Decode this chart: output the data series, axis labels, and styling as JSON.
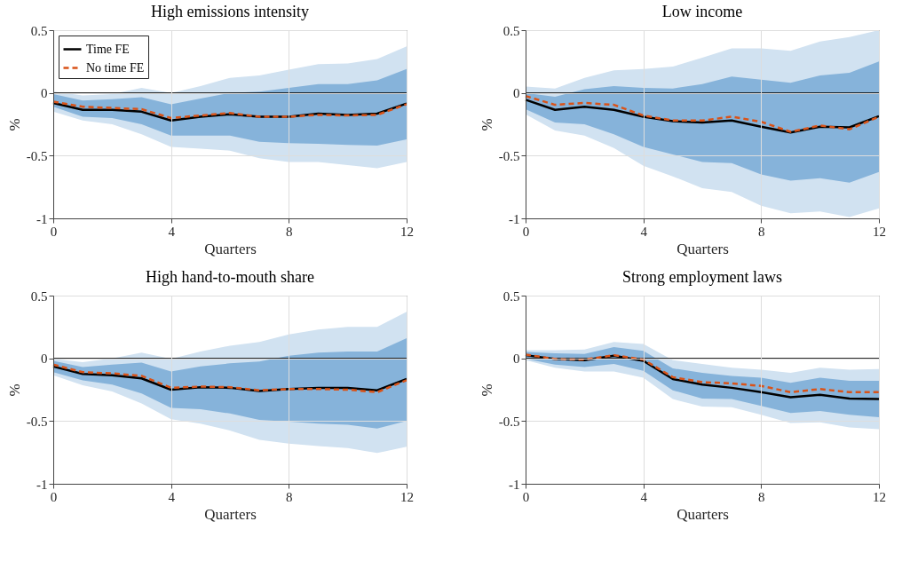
{
  "chart_data": [
    {
      "type": "line",
      "title": "High emissions intensity",
      "xlabel": "Quarters",
      "ylabel": "%",
      "x": [
        0,
        1,
        2,
        3,
        4,
        5,
        6,
        7,
        8,
        9,
        10,
        11,
        12
      ],
      "xlim": [
        0,
        12
      ],
      "xticks": [
        0,
        4,
        8,
        12
      ],
      "ylim": [
        -1,
        0.5
      ],
      "yticks": [
        -1,
        -0.5,
        0,
        0.5
      ],
      "grid": true,
      "legend": "top left",
      "ref_lines": [
        {
          "axis": "y",
          "value": 0,
          "color": "#000000"
        }
      ],
      "series": [
        {
          "type": "area",
          "color": "#d1e2f1",
          "values": [
            null,
            null,
            null,
            null,
            null,
            null,
            null,
            null,
            null,
            null,
            null,
            null,
            null
          ],
          "lower": [
            -0.15,
            -0.22,
            -0.25,
            -0.33,
            -0.43,
            -0.445,
            -0.46,
            -0.52,
            -0.55,
            -0.55,
            -0.575,
            -0.6,
            -0.55
          ],
          "upper": [
            0.01,
            -0.02,
            -0.01,
            0.04,
            0,
            0.055,
            0.12,
            0.14,
            0.185,
            0.23,
            0.235,
            0.27,
            0.37
          ]
        },
        {
          "type": "area",
          "color": "#86b3da",
          "values": [
            null,
            null,
            null,
            null,
            null,
            null,
            null,
            null,
            null,
            null,
            null,
            null,
            null
          ],
          "lower": [
            -0.11,
            -0.19,
            -0.2,
            -0.25,
            -0.34,
            -0.34,
            -0.34,
            -0.39,
            -0.4,
            -0.405,
            -0.415,
            -0.42,
            -0.37
          ],
          "upper": [
            -0.01,
            -0.06,
            -0.05,
            -0.035,
            -0.09,
            -0.045,
            0,
            0.01,
            0.04,
            0.07,
            0.07,
            0.1,
            0.19
          ]
        },
        {
          "name": "Time FE",
          "color": "#000000",
          "line_style": "solid",
          "values": [
            -0.08,
            -0.135,
            -0.135,
            -0.15,
            -0.22,
            -0.19,
            -0.17,
            -0.19,
            -0.19,
            -0.165,
            -0.175,
            -0.165,
            -0.085
          ]
        },
        {
          "name": "No time FE",
          "color": "#d95319",
          "line_style": "dashed",
          "values": [
            -0.07,
            -0.11,
            -0.12,
            -0.13,
            -0.2,
            -0.18,
            -0.16,
            -0.19,
            -0.19,
            -0.175,
            -0.18,
            -0.175,
            -0.09
          ]
        }
      ]
    },
    {
      "type": "line",
      "title": "Low income",
      "xlabel": "Quarters",
      "ylabel": "%",
      "x": [
        0,
        1,
        2,
        3,
        4,
        5,
        6,
        7,
        8,
        9,
        10,
        11,
        12
      ],
      "xlim": [
        0,
        12
      ],
      "xticks": [
        0,
        4,
        8,
        12
      ],
      "ylim": [
        -1,
        0.5
      ],
      "yticks": [
        -1,
        -0.5,
        0,
        0.5
      ],
      "grid": true,
      "ref_lines": [
        {
          "axis": "y",
          "value": 0,
          "color": "#000000"
        }
      ],
      "series": [
        {
          "type": "area",
          "color": "#d1e2f1",
          "values": [
            null,
            null,
            null,
            null,
            null,
            null,
            null,
            null,
            null,
            null,
            null,
            null,
            null
          ],
          "lower": [
            -0.17,
            -0.3,
            -0.34,
            -0.44,
            -0.58,
            -0.665,
            -0.76,
            -0.79,
            -0.9,
            -0.96,
            -0.945,
            -0.99,
            -0.92
          ],
          "upper": [
            0.05,
            0.035,
            0.12,
            0.18,
            0.19,
            0.21,
            0.28,
            0.355,
            0.355,
            0.335,
            0.41,
            0.445,
            0.5
          ]
        },
        {
          "type": "area",
          "color": "#86b3da",
          "values": [
            null,
            null,
            null,
            null,
            null,
            null,
            null,
            null,
            null,
            null,
            null,
            null,
            null
          ],
          "lower": [
            -0.13,
            -0.235,
            -0.25,
            -0.33,
            -0.43,
            -0.49,
            -0.55,
            -0.56,
            -0.65,
            -0.7,
            -0.68,
            -0.715,
            -0.63
          ],
          "upper": [
            0,
            -0.03,
            0.03,
            0.055,
            0.04,
            0.035,
            0.07,
            0.13,
            0.105,
            0.08,
            0.14,
            0.16,
            0.25
          ]
        },
        {
          "name": "Time FE",
          "color": "#000000",
          "line_style": "solid",
          "values": [
            -0.055,
            -0.135,
            -0.11,
            -0.135,
            -0.19,
            -0.225,
            -0.235,
            -0.22,
            -0.27,
            -0.315,
            -0.27,
            -0.275,
            -0.185
          ]
        },
        {
          "name": "No time FE",
          "color": "#d95319",
          "line_style": "dashed",
          "values": [
            -0.025,
            -0.095,
            -0.08,
            -0.095,
            -0.18,
            -0.22,
            -0.22,
            -0.19,
            -0.23,
            -0.31,
            -0.26,
            -0.29,
            -0.19
          ]
        }
      ]
    },
    {
      "type": "line",
      "title": "High hand-to-mouth share",
      "xlabel": "Quarters",
      "ylabel": "%",
      "x": [
        0,
        1,
        2,
        3,
        4,
        5,
        6,
        7,
        8,
        9,
        10,
        11,
        12
      ],
      "xlim": [
        0,
        12
      ],
      "xticks": [
        0,
        4,
        8,
        12
      ],
      "ylim": [
        -1,
        0.5
      ],
      "yticks": [
        -1,
        -0.5,
        0,
        0.5
      ],
      "grid": true,
      "ref_lines": [
        {
          "axis": "y",
          "value": 0,
          "color": "#000000"
        }
      ],
      "series": [
        {
          "type": "area",
          "color": "#d1e2f1",
          "values": [
            null,
            null,
            null,
            null,
            null,
            null,
            null,
            null,
            null,
            null,
            null,
            null,
            null
          ],
          "lower": [
            -0.135,
            -0.215,
            -0.265,
            -0.36,
            -0.485,
            -0.52,
            -0.575,
            -0.65,
            -0.68,
            -0.7,
            -0.715,
            -0.755,
            -0.705
          ],
          "upper": [
            -0.005,
            -0.03,
            0,
            0.045,
            -0.005,
            0.055,
            0.1,
            0.13,
            0.19,
            0.23,
            0.25,
            0.25,
            0.37
          ]
        },
        {
          "type": "area",
          "color": "#86b3da",
          "values": [
            null,
            null,
            null,
            null,
            null,
            null,
            null,
            null,
            null,
            null,
            null,
            null,
            null
          ],
          "lower": [
            -0.11,
            -0.175,
            -0.21,
            -0.28,
            -0.395,
            -0.405,
            -0.44,
            -0.49,
            -0.505,
            -0.52,
            -0.53,
            -0.56,
            -0.5
          ],
          "upper": [
            -0.02,
            -0.07,
            -0.05,
            -0.035,
            -0.105,
            -0.065,
            -0.04,
            -0.025,
            0.02,
            0.045,
            0.055,
            0.055,
            0.16
          ]
        },
        {
          "name": "Time FE",
          "color": "#000000",
          "line_style": "solid",
          "values": [
            -0.065,
            -0.125,
            -0.135,
            -0.16,
            -0.25,
            -0.23,
            -0.235,
            -0.26,
            -0.245,
            -0.235,
            -0.235,
            -0.255,
            -0.165
          ]
        },
        {
          "name": "No time FE",
          "color": "#d95319",
          "line_style": "dashed",
          "values": [
            -0.05,
            -0.11,
            -0.12,
            -0.14,
            -0.235,
            -0.225,
            -0.23,
            -0.255,
            -0.245,
            -0.245,
            -0.25,
            -0.27,
            -0.175
          ]
        }
      ]
    },
    {
      "type": "line",
      "title": "Strong employment laws",
      "xlabel": "Quarters",
      "ylabel": "%",
      "x": [
        0,
        1,
        2,
        3,
        4,
        5,
        6,
        7,
        8,
        9,
        10,
        11,
        12
      ],
      "xlim": [
        0,
        12
      ],
      "xticks": [
        0,
        4,
        8,
        12
      ],
      "ylim": [
        -1,
        0.5
      ],
      "yticks": [
        -1,
        -0.5,
        0,
        0.5
      ],
      "grid": true,
      "ref_lines": [
        {
          "axis": "y",
          "value": 0,
          "color": "#000000"
        }
      ],
      "series": [
        {
          "type": "area",
          "color": "#d1e2f1",
          "values": [
            null,
            null,
            null,
            null,
            null,
            null,
            null,
            null,
            null,
            null,
            null,
            null,
            null
          ],
          "lower": [
            -0.015,
            -0.075,
            -0.105,
            -0.105,
            -0.155,
            -0.325,
            -0.385,
            -0.39,
            -0.45,
            -0.515,
            -0.51,
            -0.55,
            -0.565
          ],
          "upper": [
            0.065,
            0.065,
            0.07,
            0.13,
            0.115,
            -0.015,
            -0.045,
            -0.075,
            -0.09,
            -0.115,
            -0.075,
            -0.09,
            -0.085
          ]
        },
        {
          "type": "area",
          "color": "#86b3da",
          "values": [
            null,
            null,
            null,
            null,
            null,
            null,
            null,
            null,
            null,
            null,
            null,
            null,
            null
          ],
          "lower": [
            -0.005,
            -0.05,
            -0.07,
            -0.045,
            -0.1,
            -0.255,
            -0.32,
            -0.325,
            -0.38,
            -0.435,
            -0.42,
            -0.45,
            -0.47
          ],
          "upper": [
            0.05,
            0.04,
            0.035,
            0.09,
            0.06,
            -0.08,
            -0.115,
            -0.14,
            -0.155,
            -0.195,
            -0.155,
            -0.18,
            -0.18
          ]
        },
        {
          "name": "Time FE",
          "color": "#000000",
          "line_style": "solid",
          "values": [
            0.025,
            -0.005,
            -0.015,
            0.02,
            -0.02,
            -0.165,
            -0.21,
            -0.235,
            -0.27,
            -0.31,
            -0.29,
            -0.32,
            -0.325
          ]
        },
        {
          "name": "No time FE",
          "color": "#d95319",
          "line_style": "dashed",
          "values": [
            0.03,
            -0.005,
            -0.01,
            0.025,
            -0.01,
            -0.15,
            -0.19,
            -0.2,
            -0.22,
            -0.27,
            -0.245,
            -0.27,
            -0.27
          ]
        }
      ]
    }
  ]
}
